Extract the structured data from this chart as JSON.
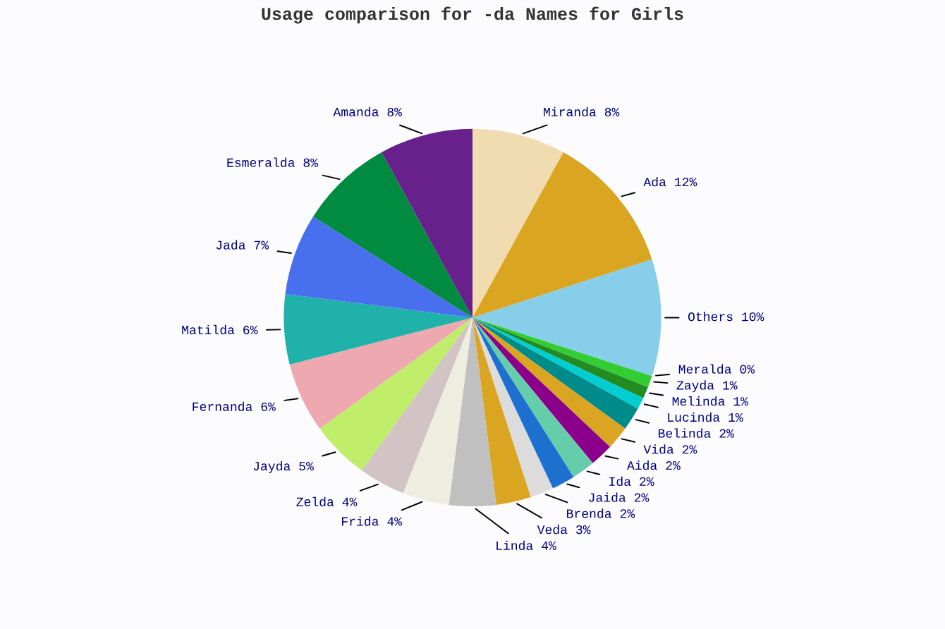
{
  "chart_data": {
    "type": "pie",
    "title": "Usage comparison for -da Names for Girls",
    "categories": [
      "Miranda",
      "Ada",
      "Others",
      "Meralda",
      "Zayda",
      "Melinda",
      "Lucinda",
      "Belinda",
      "Vida",
      "Aida",
      "Ida",
      "Jaida",
      "Brenda",
      "Veda",
      "Linda",
      "Frida",
      "Zelda",
      "Jayda",
      "Fernanda",
      "Matilda",
      "Jada",
      "Esmeralda",
      "Amanda"
    ],
    "values": [
      8,
      12,
      10,
      0,
      1,
      1,
      1,
      2,
      2,
      2,
      2,
      2,
      2,
      3,
      4,
      4,
      4,
      5,
      6,
      6,
      7,
      8,
      8
    ],
    "value_labels": [
      "8%",
      "12%",
      "10%",
      "0%",
      "1%",
      "1%",
      "1%",
      "2%",
      "2%",
      "2%",
      "2%",
      "2%",
      "2%",
      "3%",
      "4%",
      "4%",
      "4%",
      "5%",
      "6%",
      "6%",
      "7%",
      "8%",
      "8%"
    ],
    "colors": [
      "#f0dcb0",
      "#daa520",
      "#87ceeb",
      "#d2b48c",
      "#32cd32",
      "#228b22",
      "#00ced1",
      "#008b8b",
      "#daa520",
      "#8b008b",
      "#66cdaa",
      "#1e70d0",
      "#dcdcdc",
      "#daa520",
      "#c0c0c0",
      "#eeeee0",
      "#d2c4c4",
      "#c0ee6a",
      "#eea8b0",
      "#20b2aa",
      "#4870ee",
      "#008b40",
      "#68208c"
    ]
  }
}
